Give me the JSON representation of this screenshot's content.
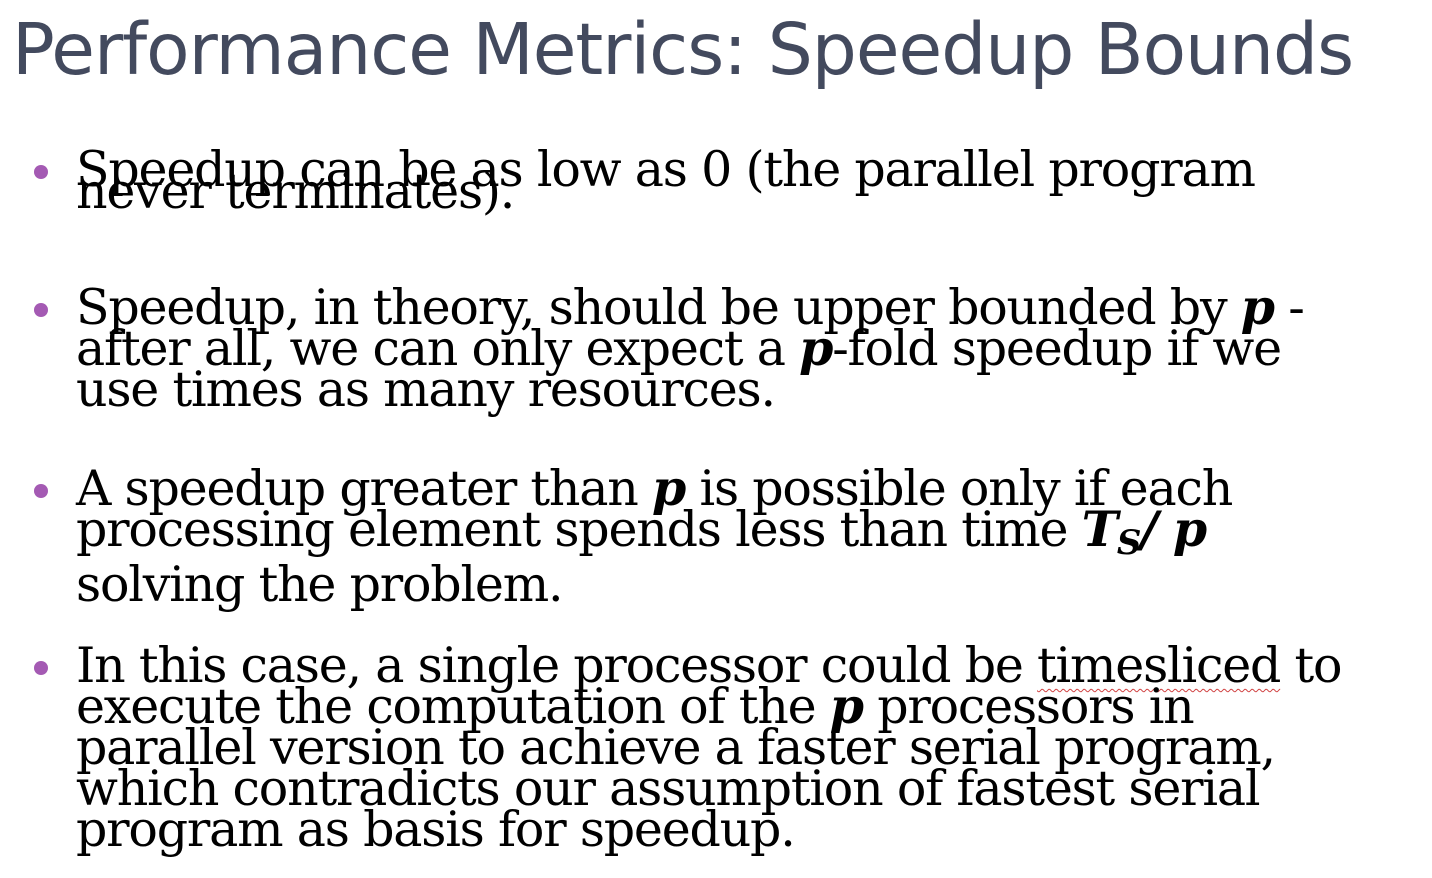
{
  "slide": {
    "title": "Performance Metrics: Speedup Bounds",
    "colors": {
      "title": "#434a5e",
      "bullet": "#a45ab3",
      "body": "#000000",
      "spellcheck": "#d04040"
    },
    "bullets": [
      {
        "lines": [
          {
            "a": "Speedup can be as low as 0 (the parallel program"
          },
          {
            "a": "never terminates)."
          }
        ]
      },
      {
        "lines": [
          {
            "a": "Speedup, in theory, should be upper bounded by ",
            "m": "p",
            "b": " -"
          },
          {
            "a": "after all, we can only expect a ",
            "m": "p",
            "b": "-fold speedup if we"
          },
          {
            "a": "use times as many resources."
          }
        ]
      },
      {
        "lines": [
          {
            "a": "A speedup greater than ",
            "m": "p",
            "b": " is possible only if each"
          },
          {
            "a": "processing element spends less than time ",
            "m": "T",
            "sub": "S",
            "m2": "/ p"
          },
          {
            "a": "solving the problem."
          }
        ]
      },
      {
        "lines": [
          {
            "a": "In this case, a single processor could be ",
            "s": "timesliced",
            "b": " to"
          },
          {
            "a": "execute the computation of the ",
            "m": "p",
            "b": " processors in"
          },
          {
            "a": "parallel version to achieve a faster serial program,"
          },
          {
            "a": "which contradicts our assumption of fastest serial"
          },
          {
            "a": "program as basis for speedup."
          }
        ]
      }
    ]
  }
}
